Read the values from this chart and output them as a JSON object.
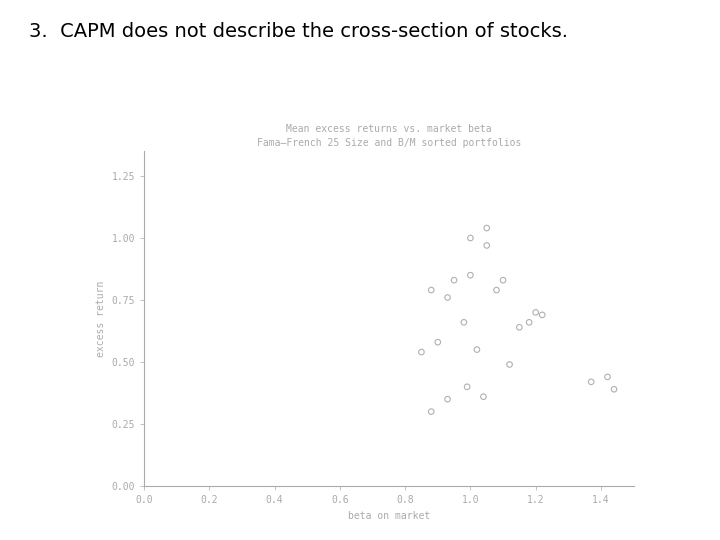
{
  "title_main": "3.  CAPM does not describe the cross-section of stocks.",
  "chart_title_line1": "Mean excess returns vs. market beta",
  "chart_title_line2": "Fama–French 25 Size and B/M sorted portfolios",
  "xlabel": "beta on market",
  "ylabel": "excess return",
  "xlim": [
    0.0,
    1.5
  ],
  "ylim": [
    0.0,
    1.35
  ],
  "xticks": [
    0.0,
    0.2,
    0.4,
    0.6,
    0.8,
    1.0,
    1.2,
    1.4
  ],
  "yticks": [
    0.0,
    0.25,
    0.5,
    0.75,
    1.0,
    1.25
  ],
  "scatter_x": [
    0.85,
    0.9,
    0.88,
    0.93,
    0.95,
    1.0,
    0.98,
    1.02,
    1.0,
    1.05,
    1.05,
    1.1,
    1.08,
    1.15,
    1.2,
    1.22,
    1.37,
    1.42,
    1.44,
    0.88,
    0.93,
    0.99,
    1.04,
    1.12,
    1.18
  ],
  "scatter_y": [
    0.54,
    0.58,
    0.79,
    0.76,
    0.83,
    0.85,
    0.66,
    0.55,
    1.0,
    1.04,
    0.97,
    0.83,
    0.79,
    0.64,
    0.7,
    0.69,
    0.42,
    0.44,
    0.39,
    0.3,
    0.35,
    0.4,
    0.36,
    0.49,
    0.66
  ],
  "scatter_color": "#b0b0b0",
  "marker": "o",
  "marker_size": 4,
  "marker_facecolor": "none",
  "marker_linewidth": 0.8,
  "bg_color": "#ffffff",
  "axis_color": "#aaaaaa",
  "tick_color": "#aaaaaa",
  "label_color": "#aaaaaa",
  "chart_title_color": "#aaaaaa",
  "main_title_color": "#000000",
  "main_title_fontsize": 14,
  "chart_title_fontsize": 7,
  "axis_label_fontsize": 7,
  "tick_fontsize": 7,
  "font_family": "monospace"
}
